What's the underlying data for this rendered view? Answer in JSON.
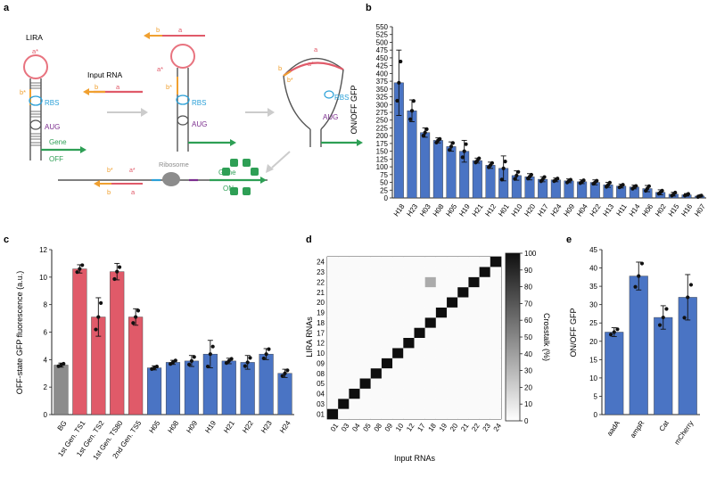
{
  "panels": {
    "a": {
      "label": "a",
      "lira_label": "LIRA",
      "input_rna_label": "Input RNA",
      "rbs": "RBS",
      "aug": "AUG",
      "gene": "Gene",
      "off": "OFF",
      "on": "ON",
      "ribosome": "Ribosome",
      "strand_a": "a",
      "strand_b": "b",
      "strand_a_star": "a*",
      "strand_b_star": "b*"
    },
    "b": {
      "label": "b"
    },
    "c": {
      "label": "c"
    },
    "d": {
      "label": "d"
    },
    "e": {
      "label": "e"
    }
  },
  "colors": {
    "blue": "#4a74c4",
    "red": "#e05a69",
    "gray": "#8c8c8c",
    "orange": "#f0a030",
    "green": "#2e9f55",
    "purple": "#7b2d8e",
    "cyan": "#2aa0d8",
    "pink": "#e8737f"
  },
  "chart_data": [
    {
      "id": "b",
      "type": "bar",
      "ylabel": "ON/OFF GFP",
      "ylim": [
        0,
        550
      ],
      "yticks": [
        0,
        25,
        50,
        75,
        100,
        125,
        150,
        175,
        200,
        225,
        250,
        275,
        300,
        325,
        350,
        375,
        400,
        425,
        450,
        475,
        500,
        525,
        550
      ],
      "categories": [
        "H18",
        "H23",
        "H03",
        "H08",
        "H05",
        "H19",
        "H21",
        "H12",
        "H01",
        "H10",
        "H20",
        "H17",
        "H24",
        "H09",
        "H04",
        "H22",
        "H13",
        "H11",
        "H14",
        "H06",
        "H02",
        "H15",
        "H16",
        "H07"
      ],
      "values": [
        370,
        280,
        210,
        185,
        165,
        150,
        120,
        105,
        95,
        72,
        68,
        60,
        58,
        55,
        52,
        50,
        42,
        38,
        35,
        30,
        18,
        12,
        10,
        6
      ],
      "errors": [
        105,
        35,
        15,
        8,
        15,
        35,
        8,
        10,
        40,
        15,
        10,
        8,
        6,
        6,
        6,
        8,
        8,
        6,
        6,
        10,
        8,
        6,
        4,
        3
      ]
    },
    {
      "id": "c",
      "type": "bar",
      "ylabel": "OFF-state GFP fluorescence (a.u.)",
      "ylim": [
        0,
        12
      ],
      "yticks": [
        0,
        2,
        4,
        6,
        8,
        10,
        12
      ],
      "categories": [
        "BG",
        "1st Gen. TS1",
        "1st Gen. TS2",
        "1st Gen. TS80",
        "2nd Gen. TS5",
        "H05",
        "H08",
        "H09",
        "H19",
        "H21",
        "H22",
        "H23",
        "H24"
      ],
      "values": [
        3.6,
        10.6,
        7.1,
        10.4,
        7.1,
        3.4,
        3.8,
        3.9,
        4.4,
        3.9,
        3.8,
        4.4,
        3.0
      ],
      "errors": [
        0.15,
        0.3,
        1.4,
        0.6,
        0.6,
        0.15,
        0.15,
        0.4,
        1.0,
        0.2,
        0.5,
        0.4,
        0.3
      ],
      "bar_colors": [
        "gray",
        "red",
        "red",
        "red",
        "red",
        "blue",
        "blue",
        "blue",
        "blue",
        "blue",
        "blue",
        "blue",
        "blue"
      ]
    },
    {
      "id": "d",
      "type": "heatmap",
      "xlabel": "Input RNAs",
      "ylabel": "LIRA RNAs",
      "x_categories": [
        "01",
        "03",
        "04",
        "05",
        "08",
        "09",
        "10",
        "12",
        "17",
        "18",
        "19",
        "20",
        "21",
        "22",
        "23",
        "24"
      ],
      "y_categories": [
        "01",
        "03",
        "04",
        "05",
        "08",
        "09",
        "10",
        "12",
        "17",
        "18",
        "19",
        "20",
        "21",
        "22",
        "23",
        "24"
      ],
      "colorbar_label": "Crosstalk (%)",
      "colorbar_ticks": [
        0,
        10,
        20,
        30,
        40,
        50,
        60,
        70,
        80,
        90,
        100
      ],
      "diagonal_value": 100,
      "off_diagonal_value": 2,
      "highlights": [
        {
          "x": "18",
          "y": "22",
          "value": 35
        }
      ]
    },
    {
      "id": "e",
      "type": "bar",
      "ylabel": "ON/OFF GFP",
      "ylim": [
        0,
        45
      ],
      "yticks": [
        0,
        5,
        10,
        15,
        20,
        25,
        30,
        35,
        40,
        45
      ],
      "categories": [
        "aadA",
        "ampR",
        "Cat",
        "mCherry"
      ],
      "values": [
        22.5,
        37.8,
        26.5,
        32
      ],
      "errors": [
        1.2,
        3.8,
        3.2,
        6.2
      ]
    }
  ]
}
